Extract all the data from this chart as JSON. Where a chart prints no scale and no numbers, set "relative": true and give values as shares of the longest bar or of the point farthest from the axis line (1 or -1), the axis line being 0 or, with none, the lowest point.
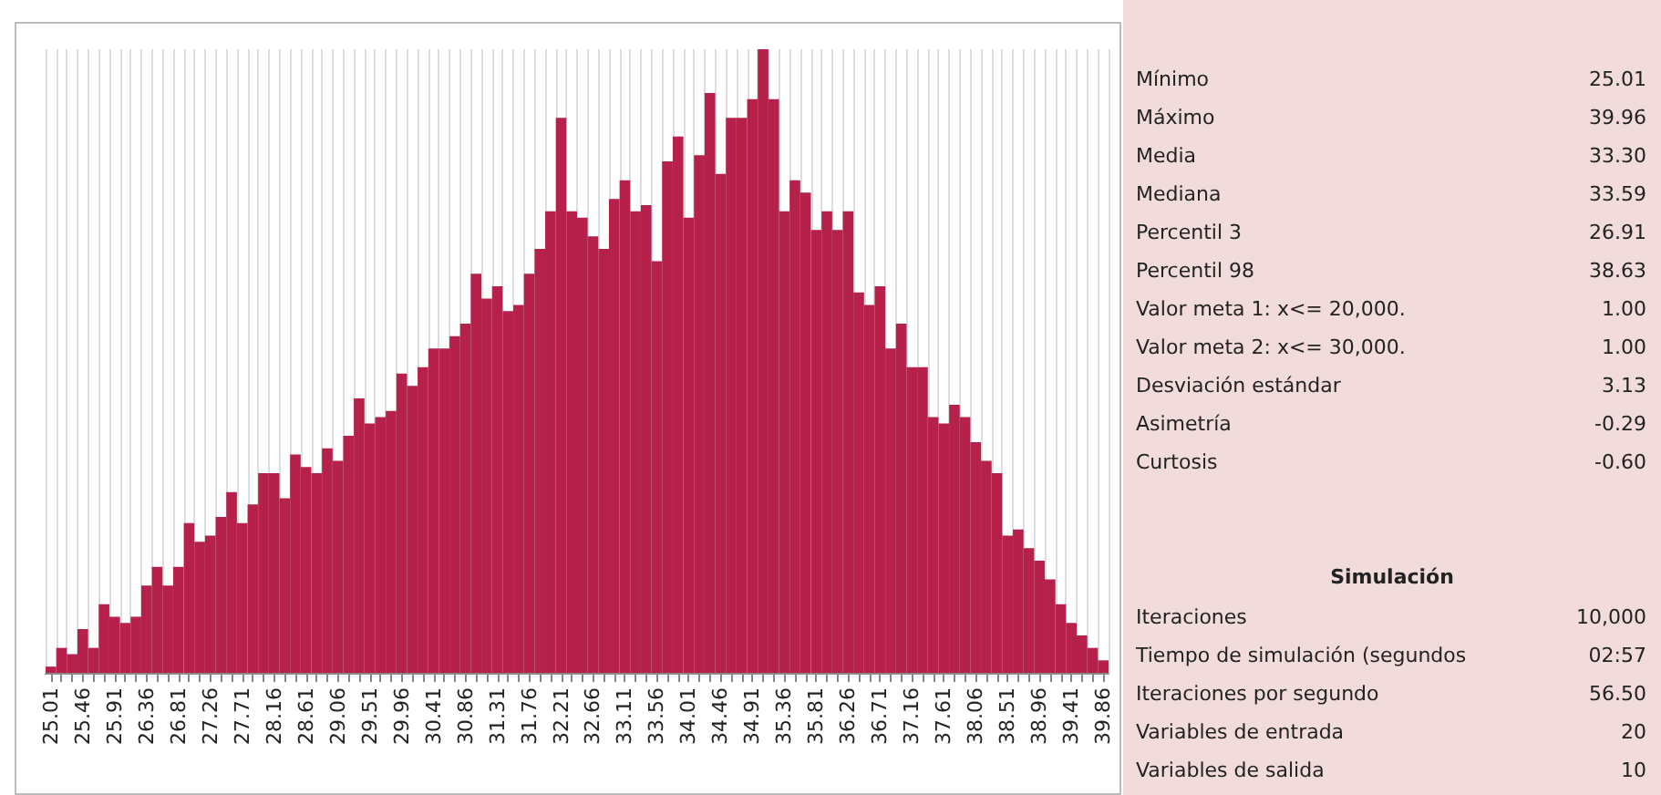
{
  "chart_data": [
    {
      "type": "bar",
      "relative": true,
      "grid": "x",
      "color": "#b5214a",
      "categories": [
        "25.01",
        null,
        null,
        "25.46",
        null,
        null,
        "25.91",
        null,
        null,
        "26.36",
        null,
        null,
        "26.81",
        null,
        null,
        "27.26",
        null,
        null,
        "27.71",
        null,
        null,
        "28.16",
        null,
        null,
        "28.61",
        null,
        null,
        "29.06",
        null,
        null,
        "29.51",
        null,
        null,
        "29.96",
        null,
        null,
        "30.41",
        null,
        null,
        "30.86",
        null,
        null,
        "31.31",
        null,
        null,
        "31.76",
        null,
        null,
        "32.21",
        null,
        null,
        "32.66",
        null,
        null,
        "33.11",
        null,
        null,
        "33.56",
        null,
        null,
        "34.01",
        null,
        null,
        "34.46",
        null,
        null,
        "34.91",
        null,
        null,
        "35.36",
        null,
        null,
        "35.81",
        null,
        null,
        "36.26",
        null,
        null,
        "36.71",
        null,
        null,
        "37.16",
        null,
        null,
        "37.61",
        null,
        null,
        "38.06",
        null,
        null,
        "38.51",
        null,
        null,
        "38.96",
        null,
        null,
        "39.41",
        null,
        null,
        "39.86"
      ],
      "values": [
        0.01,
        0.04,
        0.03,
        0.07,
        0.04,
        0.11,
        0.09,
        0.08,
        0.09,
        0.14,
        0.17,
        0.14,
        0.17,
        0.24,
        0.21,
        0.22,
        0.25,
        0.29,
        0.24,
        0.27,
        0.32,
        0.32,
        0.28,
        0.35,
        0.33,
        0.32,
        0.36,
        0.34,
        0.38,
        0.44,
        0.4,
        0.41,
        0.42,
        0.48,
        0.46,
        0.49,
        0.52,
        0.52,
        0.54,
        0.56,
        0.64,
        0.6,
        0.62,
        0.58,
        0.59,
        0.64,
        0.68,
        0.74,
        0.89,
        0.74,
        0.73,
        0.7,
        0.68,
        0.76,
        0.79,
        0.74,
        0.75,
        0.66,
        0.82,
        0.86,
        0.73,
        0.83,
        0.93,
        0.8,
        0.89,
        0.89,
        0.92,
        1,
        0.92,
        0.74,
        0.79,
        0.77,
        0.71,
        0.74,
        0.71,
        0.74,
        0.61,
        0.59,
        0.62,
        0.52,
        0.56,
        0.49,
        0.49,
        0.41,
        0.4,
        0.43,
        0.41,
        0.37,
        0.34,
        0.32,
        0.22,
        0.23,
        0.2,
        0.18,
        0.15,
        0.11,
        0.08,
        0.06,
        0.04,
        0.02
      ]
    },
    {
      "type": "other",
      "annotations": [
        "Mínimo",
        "25.01",
        "Máximo",
        "39.96",
        "Media",
        "33.30",
        "Mediana",
        "33.59",
        "Percentil 3",
        "26.91",
        "Percentil 98",
        "38.63",
        "Valor meta 1: x<= 20,000.",
        "1.00",
        "Valor meta 2: x<= 30,000.",
        "1.00",
        "Desviación estándar",
        "3.13",
        "Asimetría",
        "-0.29",
        "Curtosis",
        "-0.60"
      ]
    },
    {
      "type": "other",
      "title": "Simulación",
      "annotations": [
        "Iteraciones",
        "10,000",
        "Tiempo de simulación (segundos",
        "02:57",
        "Iteraciones por segundo",
        "56.50",
        "Variables de entrada",
        "20",
        "Variables de salida",
        "10"
      ]
    }
  ]
}
